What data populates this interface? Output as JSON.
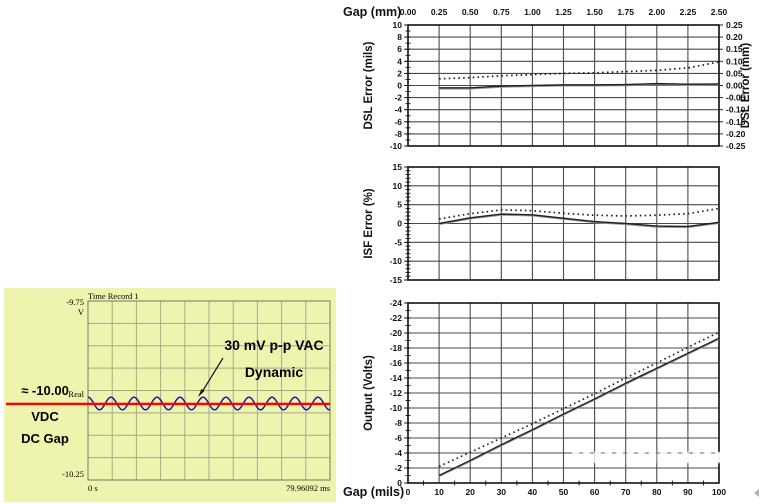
{
  "oscilloscope": {
    "title": "Time Record 1",
    "y_axis": {
      "top": "-9.75",
      "unit": "V",
      "mid": "Real",
      "bottom": "-10.25"
    },
    "x_axis": {
      "start": "0 s",
      "end": "79.96092 ms"
    },
    "callout": {
      "line1": "30 mV p-p VAC",
      "line2": "Dynamic"
    },
    "side_label": {
      "line1": "≈ -10.00",
      "line2": "VDC",
      "line3": "DC Gap"
    },
    "colors": {
      "panel_bg": "#eef4ae",
      "trace": "#1d1d9e",
      "dc_line": "#f30502",
      "grid": "#a3aa8c",
      "border": "#878e74"
    }
  },
  "chart_data": [
    {
      "type": "line",
      "top_axis_label": "Gap (mm)",
      "x_tick_labels": [
        "0.00",
        "0.25",
        "0.50",
        "0.75",
        "1.00",
        "1.25",
        "1.50",
        "1.75",
        "2.00",
        "2.25",
        "2.50"
      ],
      "x_tick_values": [
        0,
        0.25,
        0.5,
        0.75,
        1.0,
        1.25,
        1.5,
        1.75,
        2.0,
        2.25,
        2.5
      ],
      "xlim": [
        0,
        2.5
      ],
      "ylabel_left": "DSL Error (mils)",
      "ylabel_right": "DSL Error (mm)",
      "y_tick_values": [
        10,
        8,
        6,
        4,
        2,
        0,
        -2,
        -4,
        -6,
        -8,
        -10
      ],
      "y_ticks_left": [
        "10",
        "8",
        "6",
        "4",
        "2",
        "0",
        "-2",
        "-4",
        "-6",
        "-8",
        "-10"
      ],
      "y_ticks_right": [
        "0.25",
        "0.20",
        "0.15",
        "0.10",
        "0.05",
        "0.00",
        "-0.05",
        "-0.10",
        "-0.15",
        "-0.20",
        "-0.25"
      ],
      "ylim_top": 10,
      "ylim_bottom": -10,
      "y_minor_step": 1,
      "grid": true,
      "legend": "none",
      "series": [
        {
          "name": "solid-line",
          "style": "solid",
          "x": [
            0.25,
            0.5,
            0.75,
            1.0,
            1.25,
            1.5,
            1.75,
            2.0,
            2.25,
            2.5
          ],
          "y": [
            -0.4,
            -0.4,
            -0.1,
            0.0,
            0.1,
            0.1,
            0.15,
            0.3,
            0.2,
            0.25
          ]
        },
        {
          "name": "dotted-line",
          "style": "dotted",
          "x": [
            0.25,
            0.5,
            0.75,
            1.0,
            1.25,
            1.5,
            1.75,
            2.0,
            2.25,
            2.5
          ],
          "y": [
            1.1,
            1.3,
            1.6,
            1.8,
            2.0,
            2.1,
            2.3,
            2.5,
            2.9,
            3.9
          ]
        }
      ]
    },
    {
      "type": "line",
      "x_tick_values": [
        0,
        0.25,
        0.5,
        0.75,
        1.0,
        1.25,
        1.5,
        1.75,
        2.0,
        2.25,
        2.5
      ],
      "xlim": [
        0,
        2.5
      ],
      "ylabel_left": "ISF Error (%)",
      "y_tick_values": [
        15,
        10,
        5,
        0,
        -5,
        -10,
        -15
      ],
      "y_ticks_left": [
        "15",
        "10",
        "5",
        "0",
        "-5",
        "-10",
        "-15"
      ],
      "ylim_top": 15,
      "ylim_bottom": -15,
      "y_minor_step": 1,
      "grid": true,
      "legend": "none",
      "series": [
        {
          "name": "solid-line",
          "style": "solid",
          "x": [
            0.25,
            0.5,
            0.75,
            1.0,
            1.25,
            1.5,
            1.75,
            2.0,
            2.25,
            2.5
          ],
          "y": [
            0.0,
            1.5,
            2.5,
            2.3,
            1.4,
            0.5,
            0.0,
            -0.7,
            -0.8,
            0.3
          ]
        },
        {
          "name": "dotted-line",
          "style": "dotted",
          "x": [
            0.25,
            0.5,
            0.75,
            1.0,
            1.25,
            1.5,
            1.75,
            2.0,
            2.25,
            2.5
          ],
          "y": [
            1.2,
            2.6,
            3.6,
            3.4,
            2.7,
            2.2,
            2.0,
            2.2,
            2.6,
            4.0
          ]
        }
      ]
    },
    {
      "type": "line",
      "bottom_axis_label": "Gap (mils)",
      "x_tick_labels": [
        "0",
        "10",
        "20",
        "30",
        "40",
        "50",
        "60",
        "70",
        "80",
        "90",
        "100"
      ],
      "x_tick_values": [
        0,
        10,
        20,
        30,
        40,
        50,
        60,
        70,
        80,
        90,
        100
      ],
      "xlim": [
        0,
        100
      ],
      "x_minor_step": 5,
      "ylabel_left": "Output (Volts)",
      "y_tick_values": [
        -24,
        -22,
        -20,
        -18,
        -16,
        -14,
        -12,
        -10,
        -8,
        -6,
        -4,
        -2,
        0
      ],
      "y_ticks_left": [
        "-24",
        "-22",
        "-20",
        "-18",
        "-16",
        "-14",
        "-12",
        "-10",
        "-8",
        "-6",
        "-4",
        "-2",
        "0"
      ],
      "ylim_top": -24,
      "ylim_bottom": 0,
      "y_minor_step": 1,
      "grid": true,
      "legend": "none",
      "series": [
        {
          "name": "solid-line",
          "style": "solid",
          "x": [
            10,
            20,
            30,
            40,
            50,
            60,
            70,
            80,
            90,
            100
          ],
          "y": [
            -1.0,
            -3.0,
            -5.1,
            -7.1,
            -9.2,
            -11.2,
            -13.3,
            -15.3,
            -17.3,
            -19.3
          ]
        },
        {
          "name": "dotted-line",
          "style": "dotted",
          "x": [
            10,
            20,
            30,
            40,
            50,
            60,
            70,
            80,
            90,
            100
          ],
          "y": [
            -2.2,
            -4.1,
            -6.0,
            -7.9,
            -9.9,
            -11.9,
            -14.0,
            -16.0,
            -18.1,
            -20.1
          ]
        }
      ]
    }
  ]
}
